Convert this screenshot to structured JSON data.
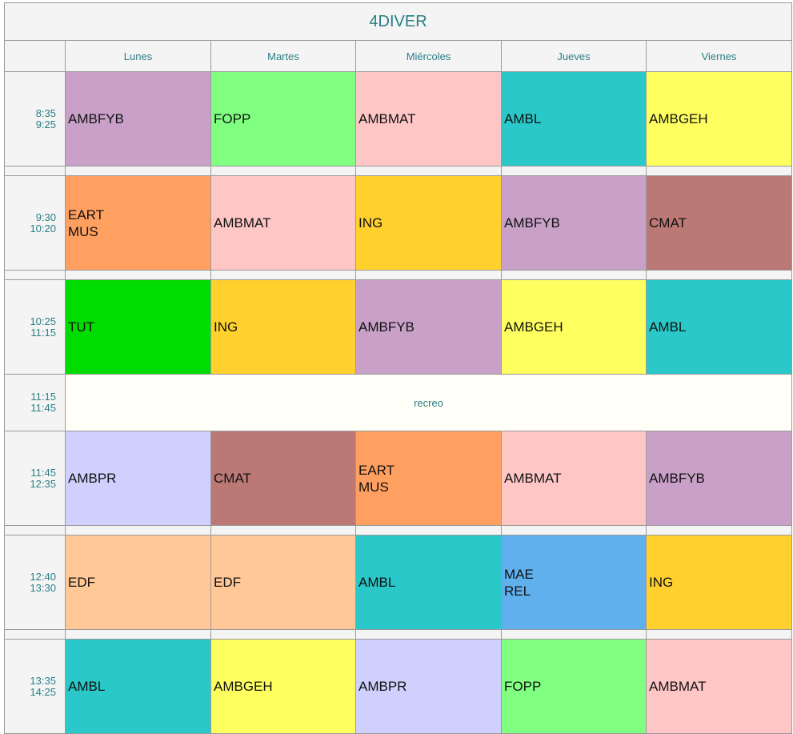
{
  "title": "4DIVER",
  "days": [
    "Lunes",
    "Martes",
    "Miércoles",
    "Jueves",
    "Viernes"
  ],
  "colors": {
    "AMBFYB": "#c8a0c8",
    "FOPP": "#80ff80",
    "AMBMAT": "#ffc6c6",
    "AMBL": "#2ac8c8",
    "AMBGEH": "#ffff60",
    "EART/MUS": "#ffa060",
    "ING": "#ffd02e",
    "CMAT": "#bb7875",
    "TUT": "#00dc00",
    "AMBPR": "#d0d0ff",
    "EDF": "#ffc896",
    "MAE/REL": "#60b0ee",
    "recess": "#fffff7",
    "header_bg": "#f4f4f4",
    "accent_text": "#2a7f86"
  },
  "rows": [
    {
      "type": "slot",
      "start": "8:35",
      "end": "9:25",
      "cells": [
        {
          "lines": [
            "AMBFYB"
          ]
        },
        {
          "lines": [
            "FOPP"
          ]
        },
        {
          "lines": [
            "AMBMAT"
          ]
        },
        {
          "lines": [
            "AMBL"
          ]
        },
        {
          "lines": [
            "AMBGEH"
          ]
        }
      ]
    },
    {
      "type": "spacer"
    },
    {
      "type": "slot",
      "start": "9:30",
      "end": "10:20",
      "cells": [
        {
          "lines": [
            "EART",
            "MUS"
          ]
        },
        {
          "lines": [
            "AMBMAT"
          ]
        },
        {
          "lines": [
            "ING"
          ]
        },
        {
          "lines": [
            "AMBFYB"
          ]
        },
        {
          "lines": [
            "CMAT"
          ]
        }
      ]
    },
    {
      "type": "spacer"
    },
    {
      "type": "slot",
      "start": "10:25",
      "end": "11:15",
      "cells": [
        {
          "lines": [
            "TUT"
          ]
        },
        {
          "lines": [
            "ING"
          ]
        },
        {
          "lines": [
            "AMBFYB"
          ]
        },
        {
          "lines": [
            "AMBGEH"
          ]
        },
        {
          "lines": [
            "AMBL"
          ]
        }
      ]
    },
    {
      "type": "recess",
      "start": "11:15",
      "end": "11:45",
      "label": "recreo"
    },
    {
      "type": "slot",
      "start": "11:45",
      "end": "12:35",
      "cells": [
        {
          "lines": [
            "AMBPR"
          ]
        },
        {
          "lines": [
            "CMAT"
          ]
        },
        {
          "lines": [
            "EART",
            "MUS"
          ]
        },
        {
          "lines": [
            "AMBMAT"
          ]
        },
        {
          "lines": [
            "AMBFYB"
          ]
        }
      ]
    },
    {
      "type": "spacer"
    },
    {
      "type": "slot",
      "start": "12:40",
      "end": "13:30",
      "cells": [
        {
          "lines": [
            "EDF"
          ]
        },
        {
          "lines": [
            "EDF"
          ]
        },
        {
          "lines": [
            "AMBL"
          ]
        },
        {
          "lines": [
            "MAE",
            "REL"
          ]
        },
        {
          "lines": [
            "ING"
          ]
        }
      ]
    },
    {
      "type": "spacer"
    },
    {
      "type": "slot",
      "start": "13:35",
      "end": "14:25",
      "cells": [
        {
          "lines": [
            "AMBL"
          ]
        },
        {
          "lines": [
            "AMBGEH"
          ]
        },
        {
          "lines": [
            "AMBPR"
          ]
        },
        {
          "lines": [
            "FOPP"
          ]
        },
        {
          "lines": [
            "AMBMAT"
          ]
        }
      ]
    }
  ]
}
